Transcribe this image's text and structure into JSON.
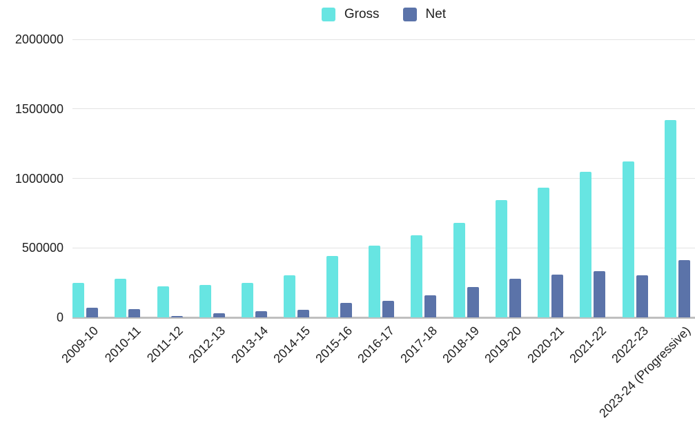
{
  "chart_data": {
    "type": "bar",
    "title": "",
    "xlabel": "",
    "ylabel": "",
    "categories": [
      "2009-10",
      "2010-11",
      "2011-12",
      "2012-13",
      "2013-14",
      "2014-15",
      "2015-16",
      "2016-17",
      "2017-18",
      "2018-19",
      "2019-20",
      "2020-21",
      "2021-22",
      "2022-23",
      "2023-24 (Progressive)"
    ],
    "series": [
      {
        "name": "Gross",
        "color": "#67e5e2",
        "values": [
          250000,
          276000,
          222000,
          234000,
          249000,
          303000,
          444000,
          515000,
          591000,
          681000,
          844000,
          934000,
          1048000,
          1121000,
          1421000
        ]
      },
      {
        "name": "Net",
        "color": "#5b73a9",
        "values": [
          69000,
          62000,
          9000,
          28000,
          46000,
          53000,
          105000,
          118000,
          157000,
          216000,
          278000,
          307000,
          333000,
          305000,
          414000
        ]
      }
    ],
    "ylim": [
      0,
      2000000
    ],
    "yticks": [
      0,
      500000,
      1000000,
      1500000,
      2000000
    ],
    "grid": true,
    "legend_position": "top-center",
    "x_tick_rotation_deg": -45
  },
  "theme": {
    "background": "#ffffff",
    "grid_color": "#e3e3e3",
    "axis_line_color": "#bfbfbf",
    "text_color": "#1f1f1f"
  }
}
